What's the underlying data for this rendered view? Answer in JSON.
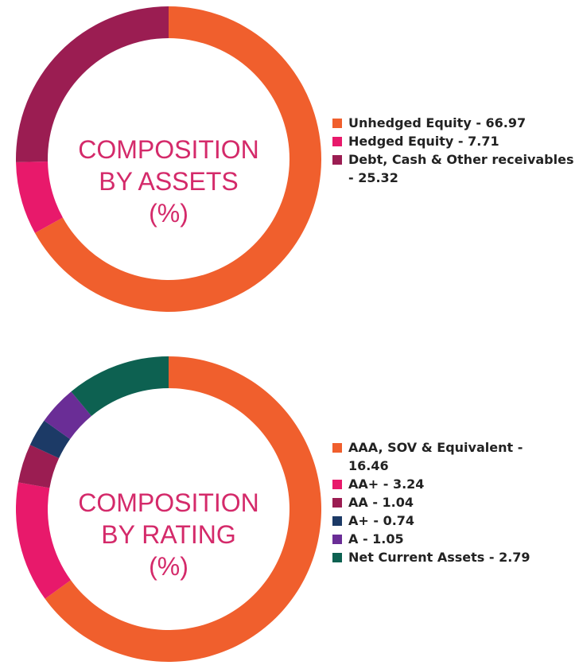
{
  "chart_data": [
    {
      "type": "pie",
      "title": "COMPOSITION BY ASSETS (%)",
      "title_lines": [
        "COMPOSITION",
        "BY ASSETS",
        "(%)"
      ],
      "categories": [
        "Unhedged Equity",
        "Hedged Equity",
        "Debt, Cash & Other receivables"
      ],
      "values": [
        66.97,
        7.71,
        25.32
      ],
      "colors": [
        "#f05f2d",
        "#e8196b",
        "#9b1d52"
      ],
      "legend": [
        {
          "lines": [
            "Unhedged Equity - 66.97"
          ]
        },
        {
          "lines": [
            "Hedged Equity - 7.71"
          ]
        },
        {
          "lines": [
            "Debt, Cash & Other receivables",
            "- 25.32"
          ]
        }
      ],
      "legend_position": "right"
    },
    {
      "type": "pie",
      "title": "COMPOSITION BY RATING (%)",
      "title_lines": [
        "COMPOSITION",
        "BY RATING",
        "(%)"
      ],
      "categories": [
        "AAA, SOV & Equivalent",
        "AA+",
        "AA",
        "A+",
        "A",
        "Net Current Assets"
      ],
      "values": [
        16.46,
        3.24,
        1.04,
        0.74,
        1.05,
        2.79
      ],
      "colors": [
        "#f05f2d",
        "#e8196b",
        "#9b1d52",
        "#1c3a66",
        "#6a2d96",
        "#0d6151"
      ],
      "legend": [
        {
          "lines": [
            "AAA, SOV & Equivalent -",
            "16.46"
          ]
        },
        {
          "lines": [
            "AA+ - 3.24"
          ]
        },
        {
          "lines": [
            "AA - 1.04"
          ]
        },
        {
          "lines": [
            "A+ - 0.74"
          ]
        },
        {
          "lines": [
            "A - 1.05"
          ]
        },
        {
          "lines": [
            "Net Current Assets - 2.79"
          ]
        }
      ],
      "legend_position": "right"
    }
  ]
}
